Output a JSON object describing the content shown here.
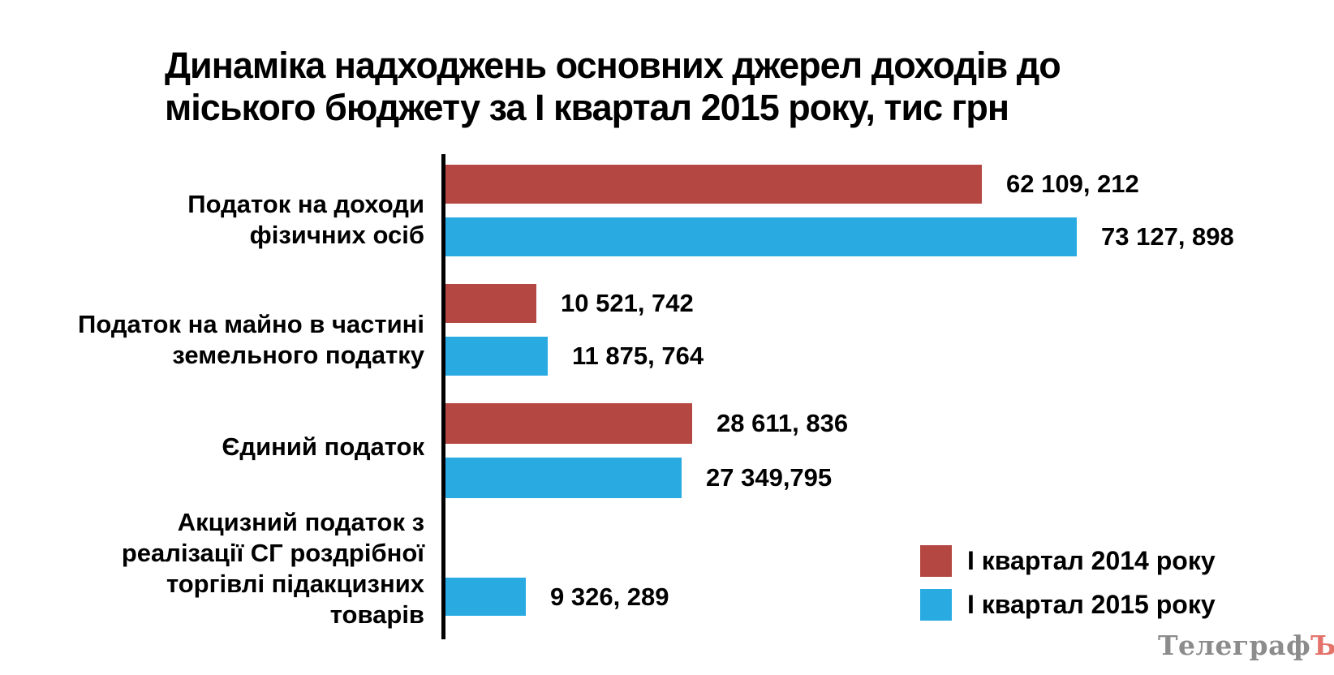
{
  "title": {
    "line1": "Динаміка надходжень основних джерел доходів до",
    "line2": "міського бюджету за І квартал 2015 року, тис грн"
  },
  "chart_data": {
    "type": "bar",
    "orientation": "horizontal",
    "title": "Динаміка надходжень основних джерел доходів до міського бюджету за І квартал 2015 року, тис грн",
    "unit": "тис грн",
    "categories": [
      "Податок на доходи фізичних осіб",
      "Податок на майно в частині земельного податку",
      "Єдиний податок",
      "Акцизний податок з реалізації СГ роздрібної торгівлі підакцизних товарів"
    ],
    "series": [
      {
        "name": "І квартал 2014 року",
        "color": "#b54742",
        "values": [
          62109.212,
          10521.742,
          28611.836,
          null
        ],
        "labels": [
          "62 109, 212",
          "10 521, 742",
          "28 611, 836",
          null
        ]
      },
      {
        "name": "І квартал 2015 року",
        "color": "#29abe2",
        "values": [
          73127.898,
          11875.764,
          27349.795,
          9326.289
        ],
        "labels": [
          "73 127, 898",
          "11 875, 764",
          "27 349,795",
          "9 326, 289"
        ]
      }
    ],
    "xlim": [
      0,
      73127.898
    ],
    "grid": false,
    "legend_position": "bottom-right"
  },
  "category_labels": [
    [
      "Податок на доходи",
      "фізичних осіб"
    ],
    [
      "Податок на майно в частині",
      "земельного податку"
    ],
    [
      "Єдиний податок"
    ],
    [
      "Акцизний податок з",
      "реалізації СГ роздрібної",
      "торгівлі підакцизних",
      "товарів"
    ]
  ],
  "legend": {
    "items": [
      {
        "label": "І квартал 2014 року",
        "color": "#b54742"
      },
      {
        "label": "І квартал 2015 року",
        "color": "#29abe2"
      }
    ]
  },
  "watermark": {
    "gray": "Телеграф",
    "red": "Ъ"
  }
}
